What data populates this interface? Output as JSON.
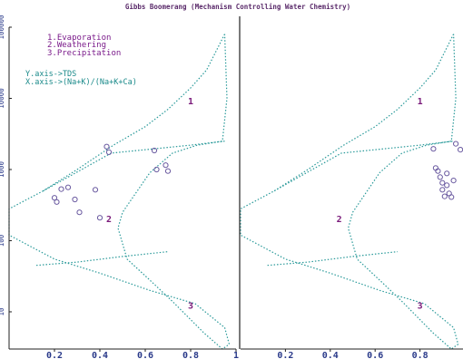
{
  "title": "Gibbs Boomerang (Mechanism Controlling Water Chemistry)",
  "legend_items": [
    "1.Evaporation",
    "2.Weathering",
    "3.Precipitation"
  ],
  "axis_notes": [
    "Y.axis->TDS",
    "X.axis->(Na+K)/(Na+K+Ca)"
  ],
  "colors": {
    "title": "#5a2a6a",
    "legend": "#7a1a8a",
    "axis_note": "#1a8a8a",
    "boundary": "#2a9a9a",
    "region_label": "#7a1a7a",
    "points": "#6a5aa0",
    "axis": "#222222",
    "tick_label": "#2a3a8a"
  },
  "chart_data": {
    "type": "scatter",
    "title": "Gibbs Boomerang (Mechanism Controlling Water Chemistry)",
    "y_scale": "log",
    "ylim": [
      3,
      100000
    ],
    "y_ticks": [
      "10",
      "100",
      "1000",
      "10000",
      "100000"
    ],
    "panels": [
      {
        "xlim": [
          0,
          1
        ],
        "x_ticks": [
          "0.2",
          "0.4",
          "0.6",
          "0.8",
          "1"
        ],
        "region_labels": [
          "1",
          "2",
          "3"
        ],
        "points": [
          {
            "x": 0.2,
            "y": 400
          },
          {
            "x": 0.21,
            "y": 350
          },
          {
            "x": 0.23,
            "y": 530
          },
          {
            "x": 0.26,
            "y": 560
          },
          {
            "x": 0.29,
            "y": 380
          },
          {
            "x": 0.31,
            "y": 250
          },
          {
            "x": 0.38,
            "y": 520
          },
          {
            "x": 0.4,
            "y": 210
          },
          {
            "x": 0.43,
            "y": 2100
          },
          {
            "x": 0.44,
            "y": 1750
          },
          {
            "x": 0.64,
            "y": 1850
          },
          {
            "x": 0.65,
            "y": 1000
          },
          {
            "x": 0.69,
            "y": 1150
          },
          {
            "x": 0.7,
            "y": 950
          }
        ]
      },
      {
        "xlim": [
          0,
          1
        ],
        "x_ticks": [
          "0.2",
          "0.4",
          "0.6",
          "0.8",
          ""
        ],
        "region_labels": [
          "1",
          "2",
          "3"
        ],
        "points": [
          {
            "x": 0.86,
            "y": 1950
          },
          {
            "x": 0.87,
            "y": 1050
          },
          {
            "x": 0.88,
            "y": 950
          },
          {
            "x": 0.89,
            "y": 780
          },
          {
            "x": 0.9,
            "y": 650
          },
          {
            "x": 0.9,
            "y": 520
          },
          {
            "x": 0.91,
            "y": 420
          },
          {
            "x": 0.92,
            "y": 880
          },
          {
            "x": 0.92,
            "y": 600
          },
          {
            "x": 0.93,
            "y": 460
          },
          {
            "x": 0.94,
            "y": 410
          },
          {
            "x": 0.95,
            "y": 700
          },
          {
            "x": 0.96,
            "y": 2300
          },
          {
            "x": 0.98,
            "y": 1900
          }
        ]
      }
    ]
  }
}
